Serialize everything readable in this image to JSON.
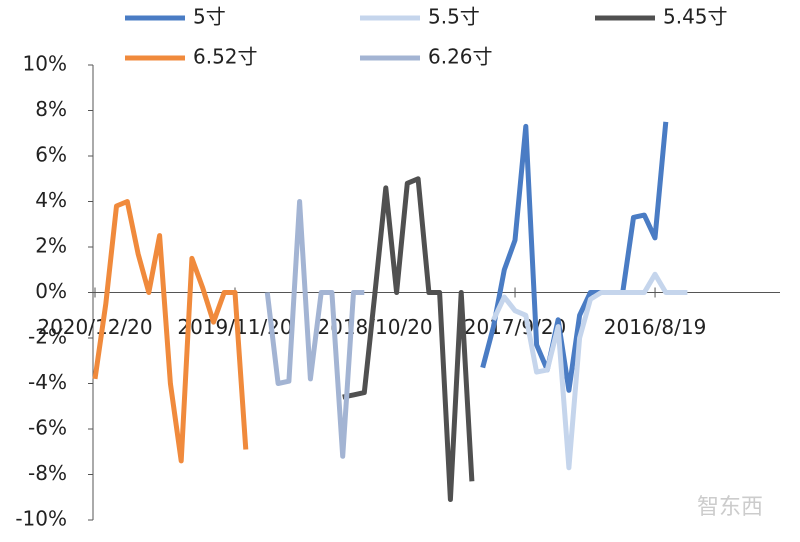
{
  "chart_data": {
    "type": "line",
    "categories": [
      "2020/12/20",
      null,
      null,
      null,
      null,
      null,
      null,
      null,
      null,
      null,
      null,
      null,
      null,
      "2019/11/20",
      null,
      null,
      null,
      null,
      null,
      null,
      null,
      null,
      null,
      null,
      null,
      null,
      "2018/10/20",
      null,
      null,
      null,
      null,
      null,
      null,
      null,
      null,
      null,
      null,
      null,
      null,
      "2017/9/20",
      null,
      null,
      null,
      null,
      null,
      null,
      null,
      null,
      null,
      null,
      null,
      null,
      "2016/8/19",
      null,
      null,
      null
    ],
    "series": [
      {
        "name": "5寸",
        "color": "#4a7cc4",
        "values": [
          null,
          null,
          null,
          null,
          null,
          null,
          null,
          null,
          null,
          null,
          null,
          null,
          null,
          null,
          null,
          null,
          null,
          null,
          null,
          null,
          null,
          null,
          null,
          null,
          null,
          null,
          null,
          null,
          null,
          null,
          null,
          null,
          null,
          null,
          null,
          null,
          -3.3,
          -1.5,
          1.0,
          2.3,
          7.3,
          -2.3,
          -3.4,
          -1.2,
          -4.3,
          -1.0,
          0,
          0,
          0,
          0,
          3.3,
          3.4,
          2.4,
          7.5,
          null,
          null
        ]
      },
      {
        "name": "5.5寸",
        "color": "#c5d5ec",
        "values": [
          null,
          null,
          null,
          null,
          null,
          null,
          null,
          null,
          null,
          null,
          null,
          null,
          null,
          null,
          null,
          null,
          null,
          null,
          null,
          null,
          null,
          null,
          null,
          null,
          null,
          null,
          null,
          null,
          null,
          null,
          null,
          null,
          null,
          null,
          null,
          null,
          null,
          -1.2,
          -0.2,
          -0.8,
          -1.0,
          -3.5,
          -3.4,
          -1.5,
          -7.7,
          -2.0,
          -0.3,
          0,
          0,
          0,
          0,
          0,
          0.8,
          0,
          0,
          0
        ]
      },
      {
        "name": "5.45寸",
        "color": "#505050",
        "values": [
          null,
          null,
          null,
          null,
          null,
          null,
          null,
          null,
          null,
          null,
          null,
          null,
          null,
          null,
          null,
          null,
          null,
          null,
          null,
          null,
          null,
          null,
          null,
          -4.6,
          -4.5,
          -4.4,
          0,
          4.6,
          0,
          4.8,
          5.0,
          0,
          0,
          -9.1,
          0,
          -8.3,
          null,
          null,
          null,
          null,
          null,
          null,
          null,
          null,
          null,
          null,
          null,
          null,
          null,
          null,
          null,
          null,
          null,
          null,
          null,
          null
        ]
      },
      {
        "name": "6.52寸",
        "color": "#f08a3c",
        "values": [
          -3.8,
          -0.5,
          3.8,
          4.0,
          1.7,
          0,
          2.5,
          -4.0,
          -7.4,
          1.5,
          0.2,
          -1.3,
          0,
          0,
          -6.9,
          null,
          null,
          null,
          null,
          null,
          null,
          null,
          null,
          null,
          null,
          null,
          null,
          null,
          null,
          null,
          null,
          null,
          null,
          null,
          null,
          null,
          null,
          null,
          null,
          null,
          null,
          null,
          null,
          null,
          null,
          null,
          null,
          null,
          null,
          null,
          null,
          null,
          null,
          null,
          null,
          null
        ]
      },
      {
        "name": "6.26寸",
        "color": "#a3b4d3",
        "values": [
          null,
          null,
          null,
          null,
          null,
          null,
          null,
          null,
          null,
          null,
          null,
          null,
          null,
          null,
          null,
          null,
          0,
          -4.0,
          -3.9,
          4.0,
          -3.8,
          0,
          0,
          -7.2,
          0,
          0,
          null,
          null,
          null,
          null,
          null,
          null,
          null,
          null,
          null,
          null,
          null,
          null,
          null,
          null,
          null,
          null,
          null,
          null,
          null,
          null,
          null,
          null,
          null,
          null,
          null,
          null,
          null,
          null,
          null,
          null
        ]
      }
    ],
    "ylim": [
      -10,
      10
    ],
    "yticks": [
      {
        "value": -10,
        "label": "-10%"
      },
      {
        "value": -8,
        "label": "-8%"
      },
      {
        "value": -6,
        "label": "-6%"
      },
      {
        "value": -4,
        "label": "-4%"
      },
      {
        "value": -2,
        "label": "-2%"
      },
      {
        "value": 0,
        "label": "0%"
      },
      {
        "value": 2,
        "label": "2%"
      },
      {
        "value": 4,
        "label": "4%"
      },
      {
        "value": 6,
        "label": "6%"
      },
      {
        "value": 8,
        "label": "8%"
      },
      {
        "value": 10,
        "label": "10%"
      }
    ],
    "legend": "top"
  },
  "watermark": "智东西"
}
